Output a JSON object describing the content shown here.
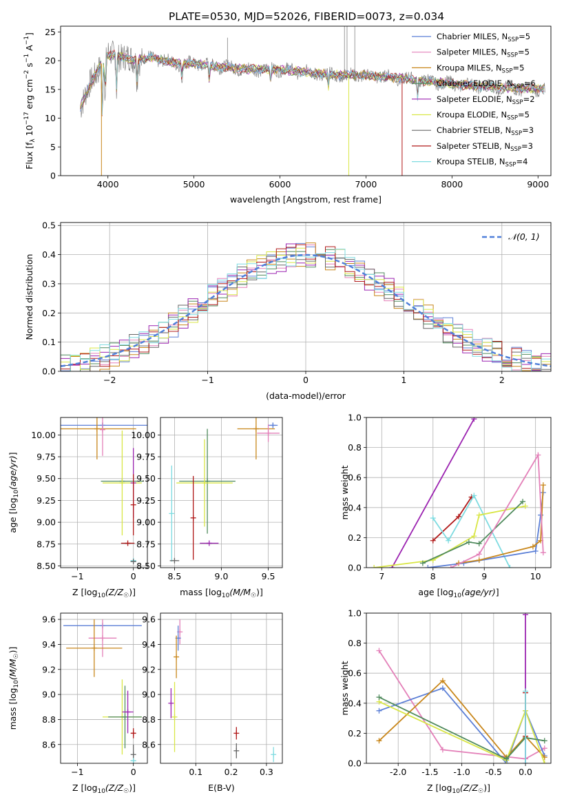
{
  "title": "PLATE=0530, MJD=52026, FIBERID=0073, z=0.034",
  "colors": {
    "Chabrier MILES": "#5b7fd6",
    "Salpeter MILES": "#e37fb8",
    "Kroupa MILES": "#c8861a",
    "Chabrier ELODIE": "#4f8a5c",
    "Salpeter ELODIE": "#9b22b0",
    "Kroupa ELODIE": "#d9e645",
    "Chabrier STELIB": "#666666",
    "Salpeter STELIB": "#b01818",
    "Kroupa STELIB": "#7ddbe0",
    "orange": "#e6821e",
    "green": "#5a9a4f",
    "lime": "#c8ea5a",
    "gauss": "#4f7fd9"
  },
  "chart_data": [
    {
      "id": "spectrum",
      "type": "line",
      "xlabel": "wavelength [Angstrom, rest frame]",
      "ylabel": "Flux [f_λ 10^-17 erg cm^-2 s^-1 A^-1]",
      "xlim": [
        3450,
        9150
      ],
      "ylim": [
        0,
        26
      ],
      "xticks": [
        4000,
        5000,
        6000,
        7000,
        8000,
        9000
      ],
      "yticks": [
        0,
        5,
        10,
        15,
        20,
        25
      ],
      "legend": "top-right",
      "series": [
        {
          "name": "Chabrier MILES",
          "label": "N_SSP=5"
        },
        {
          "name": "Salpeter MILES",
          "label": "N_SSP=5"
        },
        {
          "name": "Kroupa MILES",
          "label": "N_SSP=5"
        },
        {
          "name": "Chabrier ELODIE",
          "label": "N_SSP=6"
        },
        {
          "name": "Salpeter ELODIE",
          "label": "N_SSP=2"
        },
        {
          "name": "Kroupa ELODIE",
          "label": "N_SSP=5"
        },
        {
          "name": "Chabrier STELIB",
          "label": "N_SSP=3"
        },
        {
          "name": "Salpeter STELIB",
          "label": "N_SSP=3"
        },
        {
          "name": "Kroupa STELIB",
          "label": "N_SSP=4"
        }
      ],
      "continuum": {
        "x": [
          3680,
          3800,
          3900,
          4000,
          4100,
          4300,
          4500,
          4800,
          5000,
          5300,
          5600,
          6000,
          6300,
          6600,
          6900,
          7200,
          7500,
          7800,
          8100,
          8400,
          8700,
          9000
        ],
        "y": [
          12,
          16,
          19,
          21,
          21,
          20,
          20.5,
          19.5,
          19.5,
          19,
          18.5,
          18.5,
          18,
          17.5,
          17.5,
          17.2,
          16.8,
          16.3,
          15.8,
          15.5,
          15.2,
          15
        ]
      }
    },
    {
      "id": "residual-hist",
      "type": "line",
      "xlabel": "(data-model)/error",
      "ylabel": "Normed distribution",
      "xlim": [
        -2.5,
        2.5
      ],
      "ylim": [
        0,
        0.51
      ],
      "xticks": [
        -2,
        -1,
        0,
        1,
        2
      ],
      "yticks": [
        0.0,
        0.1,
        0.2,
        0.3,
        0.4,
        0.5
      ],
      "legend": "top-right",
      "gauss_label": "𝒩(0, 1)",
      "bin_width": 0.1
    },
    {
      "id": "age-vs-Z",
      "type": "scatter",
      "xlabel": "Z [log10(Z/Z☉)]",
      "ylabel": "age [log10(age/yr)]",
      "xlim": [
        -1.3,
        0.25
      ],
      "ylim": [
        8.48,
        10.2
      ],
      "xticks": [
        -1,
        0
      ],
      "yticks": [
        8.5,
        8.75,
        9.0,
        9.25,
        9.5,
        9.75,
        10.0
      ],
      "points": [
        {
          "s": "Chabrier MILES",
          "x": -0.55,
          "y": 10.11,
          "xerr": 1.2,
          "yerr": 0.03
        },
        {
          "s": "Kroupa MILES",
          "x": -0.65,
          "y": 10.07,
          "xerr": 0.7,
          "yerr": 0.35
        },
        {
          "s": "Salpeter MILES",
          "x": -0.55,
          "y": 10.06,
          "xerr": 0.0,
          "yerr": 0.3
        },
        {
          "s": "Chabrier ELODIE",
          "x": -0.2,
          "y": 9.47,
          "xerr": 0.38,
          "yerr": 0.0
        },
        {
          "s": "Kroupa ELODIE",
          "x": -0.2,
          "y": 9.45,
          "xerr": 0.35,
          "yerr": 0.6
        },
        {
          "s": "Salpeter ELODIE",
          "x": 0.0,
          "y": 9.45,
          "xerr": 0.0,
          "yerr": 0.4
        },
        {
          "s": "Salpeter STELIB",
          "x": -0.1,
          "y": 8.76,
          "xerr": 0.12,
          "yerr": 0.0
        },
        {
          "s": "Salpeter STELIB",
          "x": 0.0,
          "y": 9.2,
          "xerr": 0.0,
          "yerr": 0.35
        },
        {
          "s": "Kroupa STELIB",
          "x": 0.0,
          "y": 8.56,
          "xerr": 0.05,
          "yerr": 0.0
        },
        {
          "s": "Chabrier STELIB",
          "x": 0.0,
          "y": 8.55,
          "xerr": 0.05,
          "yerr": 0.0
        }
      ]
    },
    {
      "id": "age-vs-mass",
      "type": "scatter",
      "xlabel": "mass [log10(M/M☉)]",
      "ylabel": "",
      "xlim": [
        8.35,
        9.65
      ],
      "ylim": [
        8.48,
        10.2
      ],
      "xticks": [
        8.5,
        9.0,
        9.5
      ],
      "yticks": [
        8.5,
        8.75,
        9.0,
        9.25,
        9.5,
        9.75,
        10.0
      ],
      "points": [
        {
          "s": "Chabrier MILES",
          "x": 9.55,
          "y": 10.11,
          "xerr": 0.05,
          "yerr": 0.03
        },
        {
          "s": "Kroupa MILES",
          "x": 9.37,
          "y": 10.07,
          "xerr": 0.2,
          "yerr": 0.35
        },
        {
          "s": "Salpeter MILES",
          "x": 9.5,
          "y": 10.02,
          "xerr": 0.12,
          "yerr": 0.1
        },
        {
          "s": "Chabrier ELODIE",
          "x": 8.85,
          "y": 9.47,
          "xerr": 0.3,
          "yerr": 0.6
        },
        {
          "s": "Kroupa ELODIE",
          "x": 8.82,
          "y": 9.45,
          "xerr": 0.3,
          "yerr": 0.5
        },
        {
          "s": "Salpeter ELODIE",
          "x": 8.87,
          "y": 8.76,
          "xerr": 0.1,
          "yerr": 0.0
        },
        {
          "s": "Salpeter STELIB",
          "x": 8.7,
          "y": 9.05,
          "xerr": 0.0,
          "yerr": 0.48
        },
        {
          "s": "Kroupa STELIB",
          "x": 8.47,
          "y": 9.1,
          "xerr": 0.0,
          "yerr": 0.55
        },
        {
          "s": "Chabrier STELIB",
          "x": 8.5,
          "y": 8.56,
          "xerr": 0.05,
          "yerr": 0.0
        }
      ]
    },
    {
      "id": "mass-weight-vs-age",
      "type": "line",
      "xlabel": "age [log10(age/yr)]",
      "ylabel": "mass weight",
      "xlim": [
        6.7,
        10.3
      ],
      "ylim": [
        0,
        1.0
      ],
      "xticks": [
        7,
        8,
        9,
        10
      ],
      "yticks": [
        0.0,
        0.2,
        0.4,
        0.6,
        0.8,
        1.0
      ],
      "series": [
        {
          "s": "Salpeter ELODIE",
          "x": [
            7.2,
            8.8
          ],
          "y": [
            0.0,
            0.99
          ]
        },
        {
          "s": "Salpeter STELIB",
          "x": [
            8.0,
            8.5,
            8.75
          ],
          "y": [
            0.18,
            0.34,
            0.47
          ]
        },
        {
          "s": "Kroupa STELIB",
          "x": [
            8.0,
            8.3,
            8.8,
            9.5
          ],
          "y": [
            0.33,
            0.18,
            0.48,
            0.0
          ]
        },
        {
          "s": "Kroupa ELODIE",
          "x": [
            6.85,
            8.0,
            8.8,
            8.9,
            9.8
          ],
          "y": [
            0.0,
            0.05,
            0.21,
            0.35,
            0.41
          ]
        },
        {
          "s": "Chabrier ELODIE",
          "x": [
            7.8,
            8.7,
            8.9,
            9.75
          ],
          "y": [
            0.03,
            0.17,
            0.16,
            0.44
          ]
        },
        {
          "s": "Chabrier MILES",
          "x": [
            7.9,
            8.6,
            10.0,
            10.1,
            10.15
          ],
          "y": [
            0.0,
            0.03,
            0.11,
            0.35,
            0.5
          ]
        },
        {
          "s": "Kroupa MILES",
          "x": [
            8.5,
            8.9,
            9.95,
            10.1,
            10.15
          ],
          "y": [
            0.03,
            0.05,
            0.14,
            0.18,
            0.55
          ]
        },
        {
          "s": "Salpeter MILES",
          "x": [
            8.35,
            8.9,
            10.05,
            10.15
          ],
          "y": [
            0.0,
            0.09,
            0.75,
            0.1
          ]
        }
      ]
    },
    {
      "id": "mass-vs-Z",
      "type": "scatter",
      "xlabel": "Z [log10(Z/Z☉)]",
      "ylabel": "mass [log10(M/M☉)]",
      "xlim": [
        -1.3,
        0.25
      ],
      "ylim": [
        8.45,
        9.65
      ],
      "xticks": [
        -1,
        0
      ],
      "yticks": [
        8.6,
        8.8,
        9.0,
        9.2,
        9.4,
        9.6
      ],
      "points": [
        {
          "s": "Chabrier MILES",
          "x": -0.55,
          "y": 9.55,
          "xerr": 0.7,
          "yerr": 0.0
        },
        {
          "s": "Salpeter MILES",
          "x": -0.55,
          "y": 9.45,
          "xerr": 0.25,
          "yerr": 0.15
        },
        {
          "s": "Kroupa MILES",
          "x": -0.7,
          "y": 9.37,
          "xerr": 0.5,
          "yerr": 0.23
        },
        {
          "s": "Kroupa ELODIE",
          "x": -0.2,
          "y": 8.82,
          "xerr": 0.35,
          "yerr": 0.3
        },
        {
          "s": "Chabrier ELODIE",
          "x": -0.15,
          "y": 8.82,
          "xerr": 0.3,
          "yerr": 0.25
        },
        {
          "s": "Salpeter ELODIE",
          "x": -0.1,
          "y": 8.86,
          "xerr": 0.1,
          "yerr": 0.17
        },
        {
          "s": "Salpeter STELIB",
          "x": 0.0,
          "y": 8.69,
          "xerr": 0.04,
          "yerr": 0.04
        },
        {
          "s": "Chabrier STELIB",
          "x": 0.0,
          "y": 8.52,
          "xerr": 0.0,
          "yerr": 0.08
        },
        {
          "s": "Kroupa STELIB",
          "x": 0.0,
          "y": 8.47,
          "xerr": 0.05,
          "yerr": 0.0
        }
      ]
    },
    {
      "id": "mass-vs-EBV",
      "type": "scatter",
      "xlabel": "E(B-V)",
      "ylabel": "",
      "xlim": [
        0.0,
        0.345
      ],
      "ylim": [
        8.45,
        9.65
      ],
      "xticks": [
        0.1,
        0.2,
        0.3
      ],
      "yticks": [
        8.6,
        8.8,
        9.0,
        9.2,
        9.4,
        9.6
      ],
      "points": [
        {
          "s": "Salpeter MILES",
          "x": 0.055,
          "y": 9.5,
          "xerr": 0.0,
          "yerr": 0.1
        },
        {
          "s": "Chabrier MILES",
          "x": 0.05,
          "y": 9.45,
          "xerr": 0.0,
          "yerr": 0.1
        },
        {
          "s": "Kroupa MILES",
          "x": 0.045,
          "y": 9.3,
          "xerr": 0.0,
          "yerr": 0.17
        },
        {
          "s": "Salpeter ELODIE",
          "x": 0.03,
          "y": 8.93,
          "xerr": 0.0,
          "yerr": 0.12
        },
        {
          "s": "Kroupa ELODIE",
          "x": 0.04,
          "y": 8.82,
          "xerr": 0.0,
          "yerr": 0.28
        },
        {
          "s": "Salpeter STELIB",
          "x": 0.215,
          "y": 8.69,
          "xerr": 0.0,
          "yerr": 0.05
        },
        {
          "s": "Chabrier STELIB",
          "x": 0.215,
          "y": 8.55,
          "xerr": 0.0,
          "yerr": 0.06
        },
        {
          "s": "Kroupa STELIB",
          "x": 0.32,
          "y": 8.52,
          "xerr": 0.0,
          "yerr": 0.06
        }
      ]
    },
    {
      "id": "mass-weight-vs-Z",
      "type": "line",
      "xlabel": "Z [log10(Z/Z☉)]",
      "ylabel": "mass weight",
      "xlim": [
        -2.5,
        0.4
      ],
      "ylim": [
        0,
        1.0
      ],
      "xticks": [
        -2.0,
        -1.5,
        -1.0,
        -0.5,
        0.0
      ],
      "yticks": [
        0.0,
        0.2,
        0.4,
        0.6,
        0.8,
        1.0
      ],
      "series": [
        {
          "s": "Salpeter MILES",
          "x": [
            -2.3,
            -1.3,
            0.0,
            0.3
          ],
          "y": [
            0.75,
            0.09,
            0.03,
            0.1
          ]
        },
        {
          "s": "Chabrier MILES",
          "x": [
            -2.3,
            -1.3,
            -0.3,
            0.0,
            0.3
          ],
          "y": [
            0.35,
            0.5,
            0.0,
            0.35,
            0.05
          ]
        },
        {
          "s": "Kroupa MILES",
          "x": [
            -2.3,
            -1.3,
            -0.3,
            0.0,
            0.3
          ],
          "y": [
            0.15,
            0.55,
            0.04,
            0.18,
            0.04
          ]
        },
        {
          "s": "Kroupa ELODIE",
          "x": [
            -2.3,
            -0.3,
            0.0,
            0.3
          ],
          "y": [
            0.41,
            0.02,
            0.35,
            0.0
          ]
        },
        {
          "s": "Chabrier ELODIE",
          "x": [
            -2.3,
            -0.3,
            0.0,
            0.3
          ],
          "y": [
            0.44,
            0.03,
            0.17,
            0.15
          ]
        },
        {
          "s": "Salpeter ELODIE",
          "x": [
            0.0,
            0.0
          ],
          "y": [
            0.0,
            0.99
          ]
        },
        {
          "s": "Salpeter STELIB",
          "x": [
            0.0,
            0.0
          ],
          "y": [
            0.18,
            0.47
          ]
        },
        {
          "s": "Kroupa STELIB",
          "x": [
            0.0,
            0.0
          ],
          "y": [
            0.0,
            0.48
          ]
        }
      ]
    }
  ]
}
